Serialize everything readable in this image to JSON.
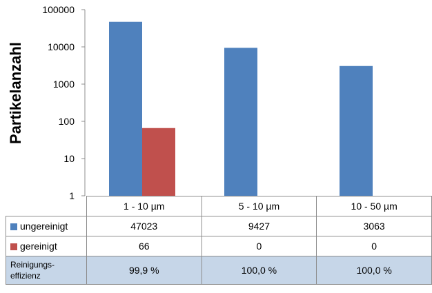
{
  "chart_data": {
    "type": "bar",
    "ylabel": "Partikelanzahl",
    "yscale": "log",
    "ylim": [
      1,
      100000
    ],
    "yticks": [
      "1",
      "10",
      "100",
      "1000",
      "10000",
      "100000"
    ],
    "categories": [
      "1 - 10 µm",
      "5 - 10 µm",
      "10 - 50 µm"
    ],
    "series": [
      {
        "name": "ungereinigt",
        "color": "#4f81bd",
        "values": [
          47023,
          9427,
          3063
        ],
        "labels": [
          "47023",
          "9427",
          "3063"
        ]
      },
      {
        "name": "gereinigt",
        "color": "#c0504d",
        "values": [
          66,
          0,
          0
        ],
        "labels": [
          "66",
          "0",
          "0"
        ]
      }
    ],
    "efficiency": {
      "label_line1": "Reinigungs-",
      "label_line2": "effizienz",
      "values": [
        "99,9 %",
        "100,0 %",
        "100,0 %"
      ]
    },
    "legend": "data-table"
  }
}
